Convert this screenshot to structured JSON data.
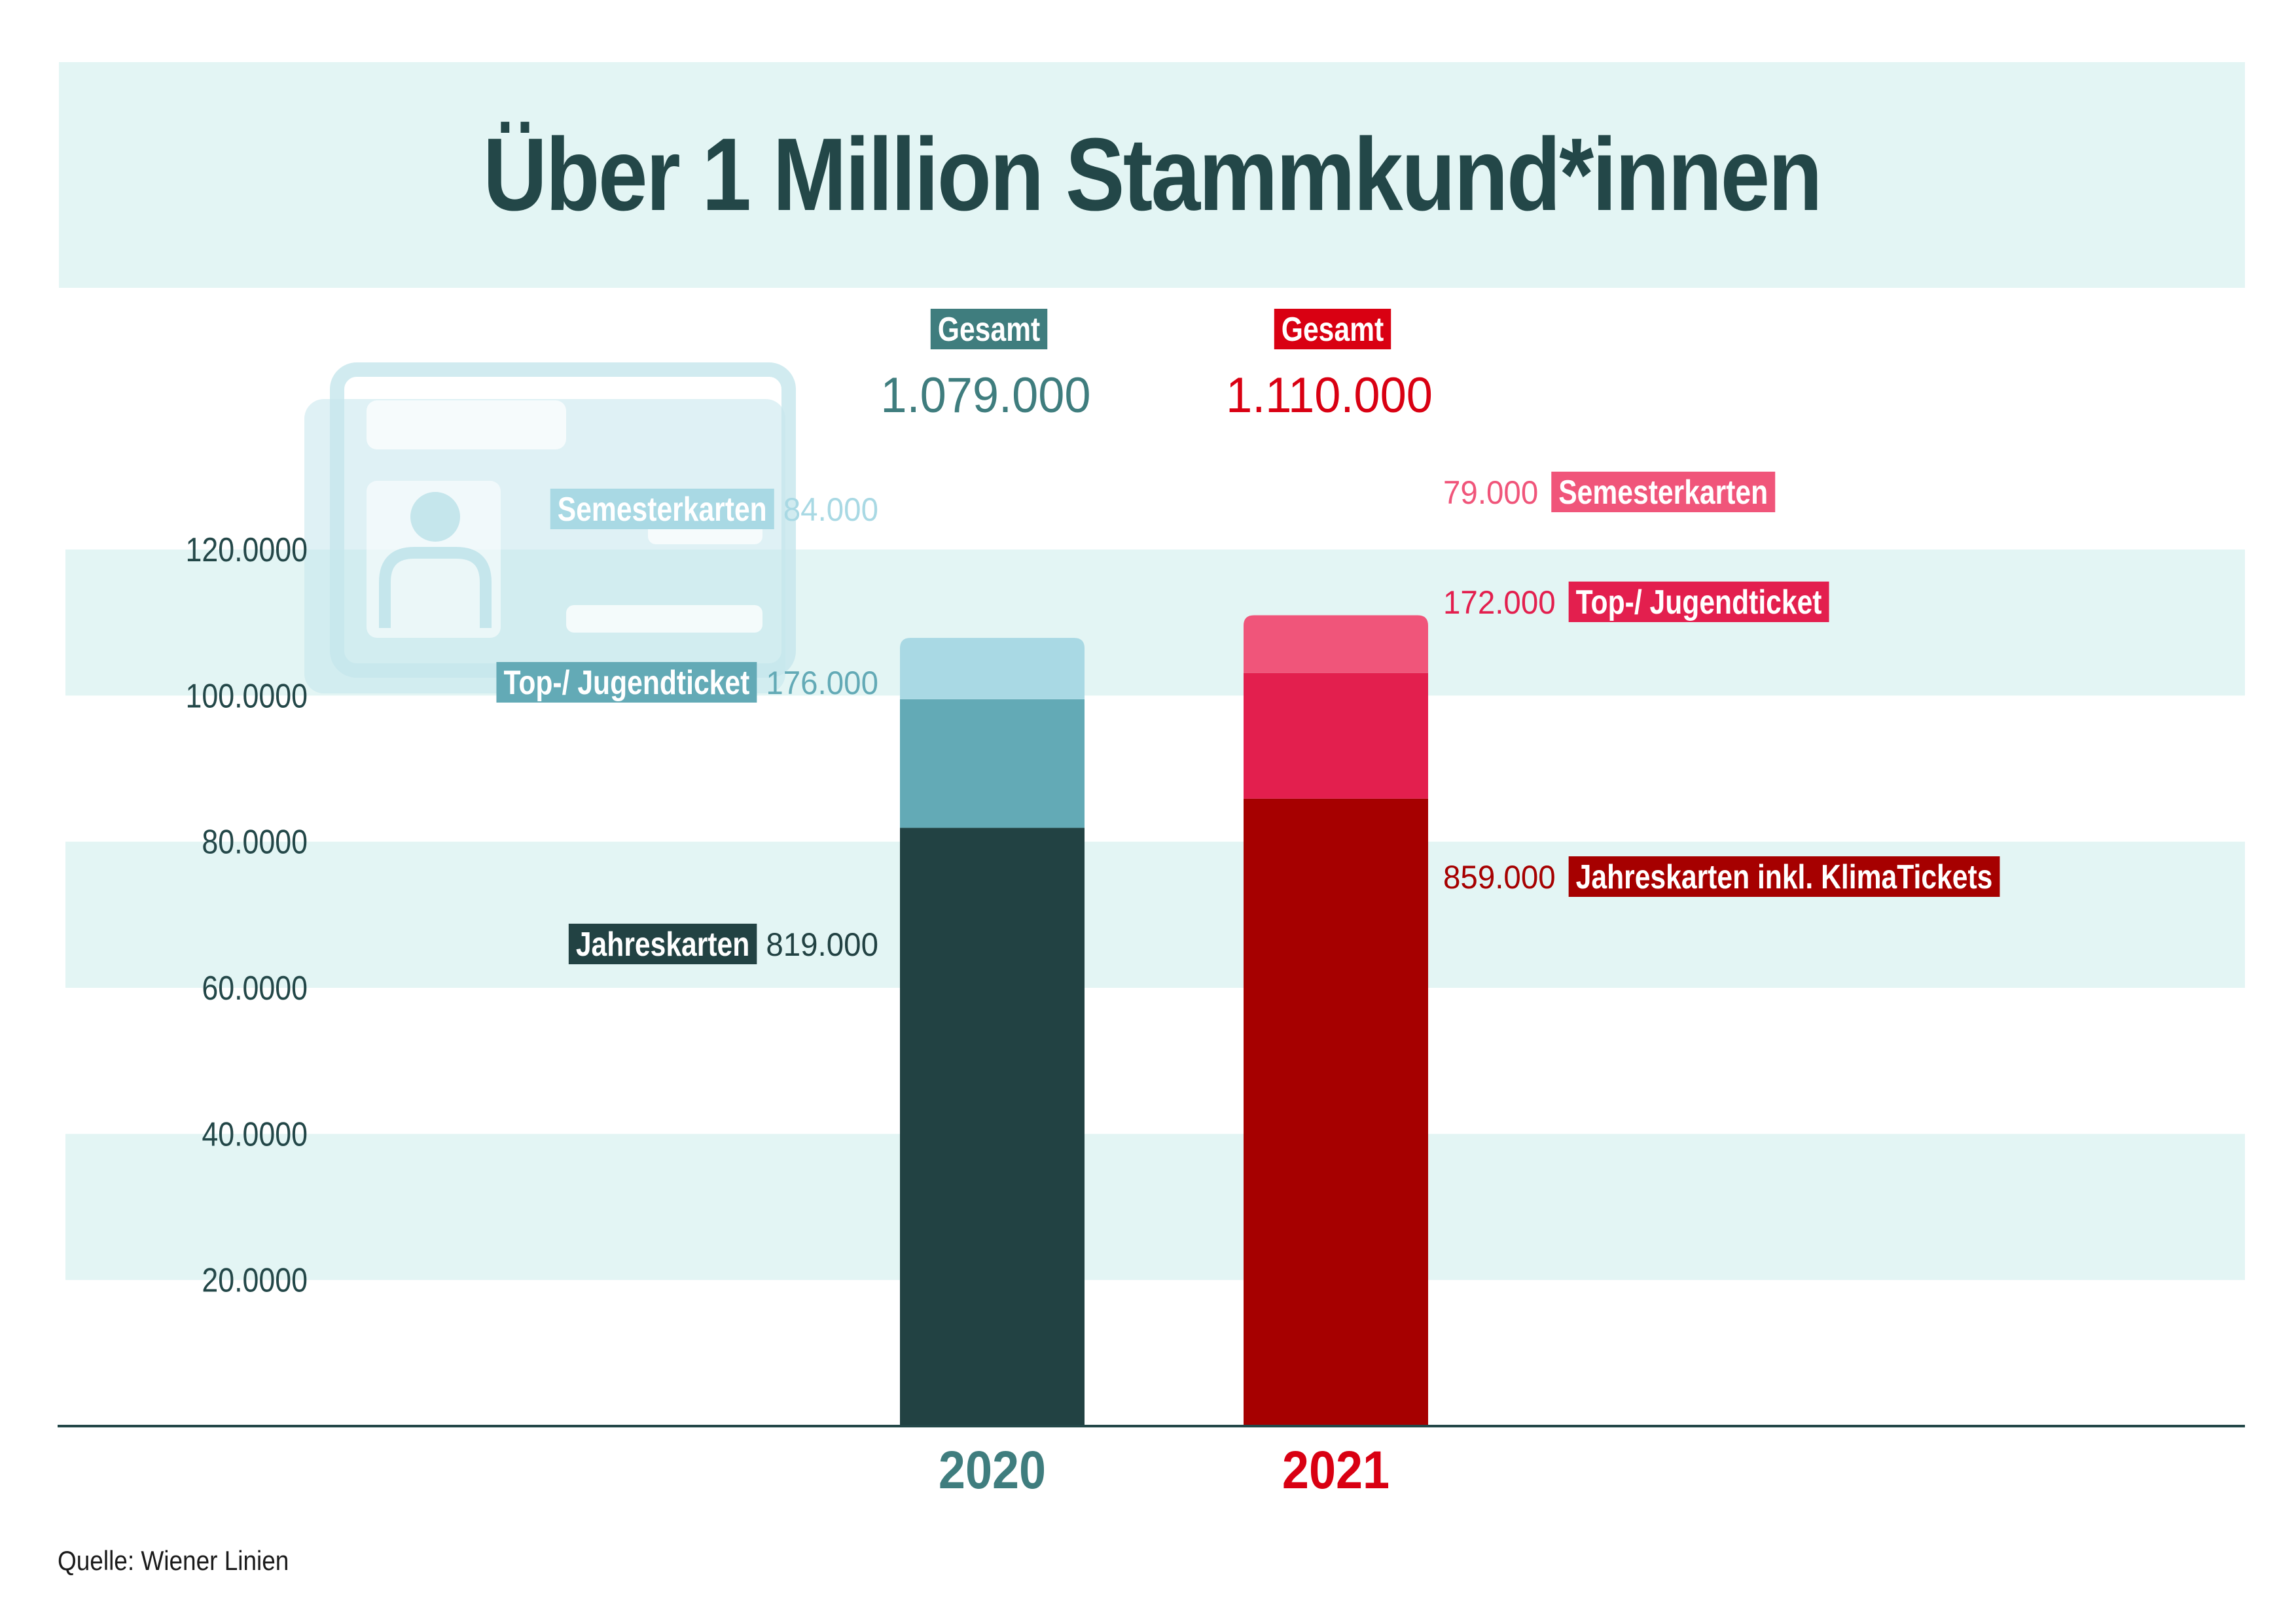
{
  "title": "Über 1 Million Stammkund*innen",
  "source": "Quelle: Wiener Linien",
  "colors": {
    "band": "#e3f5f4",
    "axis": "#234748",
    "title": "#234748",
    "total_2020": "#3f7d7e",
    "total_2021": "#d90012",
    "jahreskarten_2020": "#224243",
    "jugend_2020": "#63aab6",
    "semester_2020": "#a9d9e4",
    "jahreskarten_2021": "#a60000",
    "jugend_2021": "#e31f4e",
    "semester_2021": "#f0557a",
    "icon": "#c5e6ec"
  },
  "icons": [
    "student-id-card-icon"
  ],
  "chart_data": {
    "type": "bar",
    "stacked": true,
    "categories": [
      "2020",
      "2021"
    ],
    "y_tick_labels": [
      "20.0000",
      "40.0000",
      "60.0000",
      "80.0000",
      "100.0000",
      "120.0000"
    ],
    "y_tick_values": [
      200000,
      400000,
      600000,
      800000,
      1000000,
      1200000
    ],
    "ylim": [
      0,
      1200000
    ],
    "grid": "alternating horizontal bands",
    "totals": [
      {
        "category": "2020",
        "label": "Gesamt",
        "value": 1079000,
        "value_label": "1.079.000"
      },
      {
        "category": "2021",
        "label": "Gesamt",
        "value": 1110000,
        "value_label": "1.110.000"
      }
    ],
    "stacks": [
      {
        "category": "2020",
        "label_side": "left",
        "segments": [
          {
            "name": "Jahreskarten",
            "value": 819000,
            "value_label": "819.000",
            "color": "#224243"
          },
          {
            "name": "Top-/ Jugendticket",
            "value": 176000,
            "value_label": "176.000",
            "color": "#63aab6"
          },
          {
            "name": "Semesterkarten",
            "value": 84000,
            "value_label": "84.000",
            "color": "#a9d9e4"
          }
        ]
      },
      {
        "category": "2021",
        "label_side": "right",
        "segments": [
          {
            "name": "Jahreskarten inkl. KlimaTickets",
            "value": 859000,
            "value_label": "859.000",
            "color": "#a60000"
          },
          {
            "name": "Top-/ Jugendticket",
            "value": 172000,
            "value_label": "172.000",
            "color": "#e31f4e"
          },
          {
            "name": "Semesterkarten",
            "value": 79000,
            "value_label": "79.000",
            "color": "#f0557a"
          }
        ]
      }
    ]
  }
}
